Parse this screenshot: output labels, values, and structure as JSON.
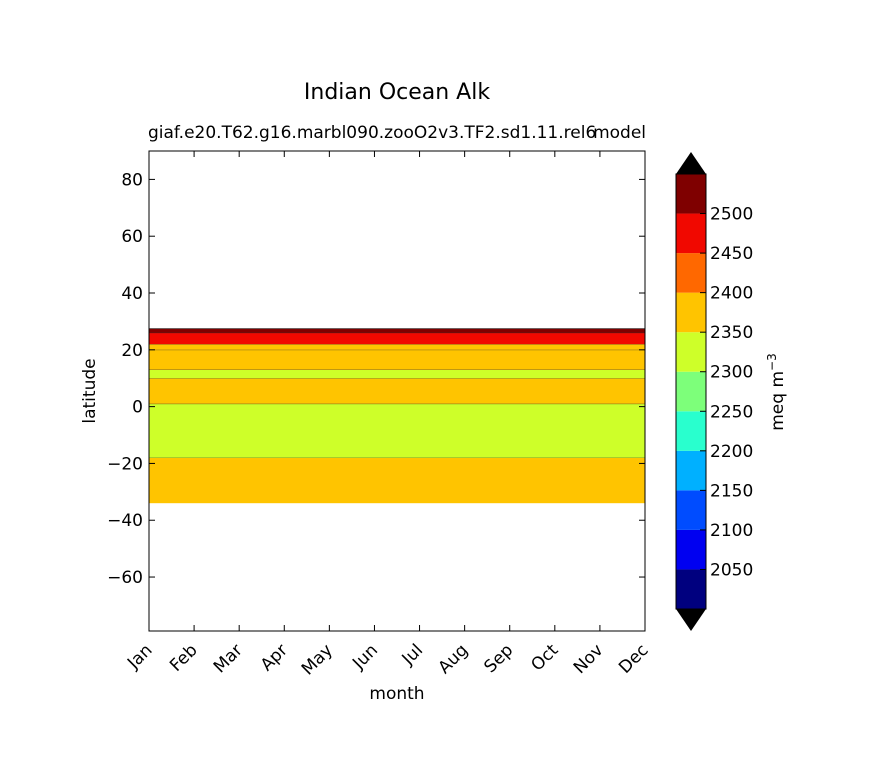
{
  "chart_data": {
    "type": "heatmap",
    "title": "Indian Ocean Alk",
    "subtitle_left": "giaf.e20.T62.g16.marbl090.zooO2v3.TF2.sd1.11.rel6",
    "subtitle_right": "model",
    "xlabel": "month",
    "ylabel": "latitude",
    "x_ticks": [
      "Jan",
      "Feb",
      "Mar",
      "Apr",
      "May",
      "Jun",
      "Jul",
      "Aug",
      "Sep",
      "Oct",
      "Nov",
      "Dec"
    ],
    "y_ticks": [
      "80",
      "60",
      "40",
      "20",
      "0",
      "−20",
      "−40",
      "−60"
    ],
    "y_tick_values": [
      80,
      60,
      40,
      20,
      0,
      -20,
      -40,
      -60
    ],
    "ylim": [
      -79,
      90
    ],
    "xlim": [
      0,
      11
    ],
    "colorbar": {
      "label": "meq m",
      "label_exponent": "−3",
      "levels": [
        2000,
        2050,
        2100,
        2150,
        2200,
        2250,
        2300,
        2350,
        2400,
        2450,
        2500,
        2550
      ],
      "tick_labels": [
        "2050",
        "2100",
        "2150",
        "2200",
        "2250",
        "2300",
        "2350",
        "2400",
        "2450",
        "2500"
      ],
      "colors": [
        "#00007f",
        "#0000f1",
        "#004cff",
        "#00b0ff",
        "#29ffce",
        "#7dff7a",
        "#ceff29",
        "#ffc400",
        "#ff6800",
        "#f10800",
        "#7f0000"
      ],
      "under_color": "#000000",
      "over_color": "#000000",
      "extend": "both"
    },
    "bands": [
      {
        "lat_bottom": -34,
        "lat_top": -18,
        "value_range": "2350-2400"
      },
      {
        "lat_bottom": -18,
        "lat_top": 1,
        "value_range": "2300-2350"
      },
      {
        "lat_bottom": 1,
        "lat_top": 10,
        "value_range": "2350-2400"
      },
      {
        "lat_bottom": 10,
        "lat_top": 13,
        "value_range": "2300-2350"
      },
      {
        "lat_bottom": 13,
        "lat_top": 20,
        "value_range": "2350-2400"
      },
      {
        "lat_bottom": 20,
        "lat_top": 22,
        "value_range": "2350-2400"
      },
      {
        "lat_bottom": 22,
        "lat_top": 26,
        "value_range": "2450-2500"
      },
      {
        "lat_bottom": 26,
        "lat_top": 27.5,
        "value_range": "2500-2550"
      }
    ]
  }
}
